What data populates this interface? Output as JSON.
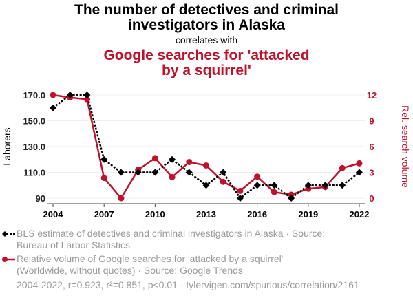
{
  "title_line1": "The number of detectives and criminal",
  "title_line2": "investigators in Alaska",
  "correlates": "correlates with",
  "title2_line1": "Google searches for 'attacked",
  "title2_line2": "by a squirrel'",
  "legend": [
    {
      "line1": "BLS estimate of detectives and criminal investigators in Alaska · Source:",
      "line2": "Bureau of Larbor Statistics"
    },
    {
      "line1": "Relative volume of Google searches for 'attacked by a squirrel'",
      "line2": "(Worldwide, without quotes) · Source: Google Trends"
    }
  ],
  "footer": "2004-2022, r=0.923, r²=0.851, p<0.01 · tylervigen.com/spurious/correlation/2161",
  "colors": {
    "series1": "#000000",
    "series2": "#c0122c"
  },
  "chart_data": {
    "type": "line",
    "x": [
      2004,
      2005,
      2006,
      2007,
      2008,
      2009,
      2010,
      2011,
      2012,
      2013,
      2014,
      2015,
      2016,
      2017,
      2018,
      2019,
      2020,
      2021,
      2022
    ],
    "xticks": [
      "2004",
      "2007",
      "2010",
      "2013",
      "2016",
      "2019",
      "2022"
    ],
    "ylabel": "Laborers",
    "y2label": "Rel. search volume",
    "ylim": [
      90,
      170
    ],
    "yticks": [
      "90",
      "110.0",
      "130.0",
      "150.0",
      "170.0"
    ],
    "ytick_values": [
      90,
      110,
      130,
      150,
      170
    ],
    "y2lim": [
      0,
      12
    ],
    "y2ticks": [
      "0",
      "3",
      "6",
      "9",
      "12"
    ],
    "y2tick_values": [
      0,
      3,
      6,
      9,
      12
    ],
    "series": [
      {
        "name": "BLS estimate of detectives and criminal investigators in Alaska",
        "axis": "left",
        "values": [
          160,
          170,
          170,
          120,
          110,
          110,
          110,
          120,
          110,
          100,
          110,
          90,
          100,
          100,
          90,
          100,
          100,
          100,
          110
        ]
      },
      {
        "name": "Relative volume of Google searches for 'attacked by a squirrel'",
        "axis": "right",
        "values": [
          12,
          11.7,
          11.5,
          2.35,
          0,
          3.3,
          4.65,
          2.45,
          4.2,
          3.8,
          1.9,
          0.85,
          2.5,
          0.7,
          0.4,
          1.1,
          1.3,
          3.5,
          4.05
        ]
      }
    ]
  }
}
